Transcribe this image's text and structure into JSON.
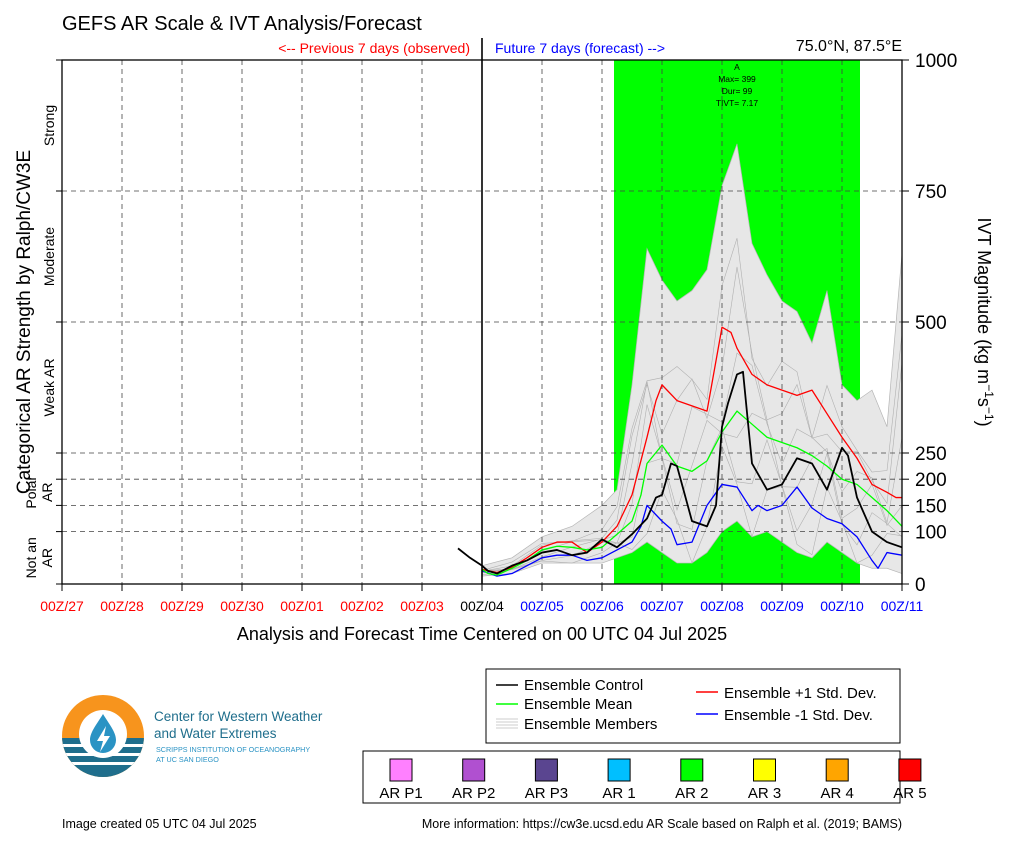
{
  "header": {
    "title": "GEFS AR Scale & IVT Analysis/Forecast",
    "previous_label": "<-- Previous 7 days (observed)",
    "future_label": "Future 7 days (forecast) -->",
    "location": "75.0°N, 87.5°E"
  },
  "axes": {
    "left_label": "Categorical AR Strength by Ralph/CW3E",
    "right_label_main": "IVT Magnitude (kg m",
    "right_label_sup1": "−1",
    "right_label_mid": "s",
    "right_label_sup2": "−1",
    "right_label_end": ")",
    "x_title": "Analysis and Forecast Time Centered on 00 UTC 04 Jul 2025",
    "categories": [
      {
        "label": "Strong",
        "lo": 750,
        "hi": 1000
      },
      {
        "label": "Moderate",
        "lo": 500,
        "hi": 750
      },
      {
        "label": "Weak AR",
        "lo": 250,
        "hi": 500
      },
      {
        "label": "Polar AR",
        "lo": 100,
        "hi": 250
      },
      {
        "label": "Not an AR",
        "lo": 0,
        "hi": 100
      }
    ]
  },
  "ar_event": {
    "letter": "A",
    "max": "Max= 399",
    "dur": "Dur= 99",
    "tivt": "TIVT= 7.17",
    "color": "#00ff00"
  },
  "legend": {
    "control": "Ensemble Control",
    "mean": "Ensemble Mean",
    "members": "Ensemble Members",
    "plus": "Ensemble +1 Std. Dev.",
    "minus": "Ensemble -1 Std. Dev."
  },
  "scale_legend": [
    {
      "label": "AR P1",
      "color": "#ff80ff"
    },
    {
      "label": "AR P2",
      "color": "#b050d0"
    },
    {
      "label": "AR P3",
      "color": "#5a4590"
    },
    {
      "label": "AR 1",
      "color": "#00bfff"
    },
    {
      "label": "AR 2",
      "color": "#00ff00"
    },
    {
      "label": "AR 3",
      "color": "#ffff00"
    },
    {
      "label": "AR 4",
      "color": "#ffa500"
    },
    {
      "label": "AR 5",
      "color": "#ff0000"
    }
  ],
  "logo": {
    "line1": "Center for Western Weather",
    "line2": "and Water Extremes",
    "line3": "SCRIPPS INSTITUTION OF OCEANOGRAPHY",
    "line4": "AT UC SAN DIEGO"
  },
  "footer": {
    "created": "Image created 05 UTC 04 Jul 2025",
    "info": "More information: https://cw3e.ucsd.edu AR Scale based on Ralph et al. (2019; BAMS)"
  },
  "colors": {
    "observed": "#ff0000",
    "forecast": "#0000ff",
    "control": "#000000",
    "mean": "#00ff00",
    "plus": "#ff0000",
    "minus": "#0000ff",
    "members": "#bbbbbb"
  },
  "chart_data": {
    "type": "line",
    "x_unit": "days since 00Z 27 Jun 2025",
    "x_ticks": [
      {
        "x": 0,
        "label": "00Z/27",
        "period": "observed"
      },
      {
        "x": 1,
        "label": "00Z/28",
        "period": "observed"
      },
      {
        "x": 2,
        "label": "00Z/29",
        "period": "observed"
      },
      {
        "x": 3,
        "label": "00Z/30",
        "period": "observed"
      },
      {
        "x": 4,
        "label": "00Z/01",
        "period": "observed"
      },
      {
        "x": 5,
        "label": "00Z/02",
        "period": "observed"
      },
      {
        "x": 6,
        "label": "00Z/03",
        "period": "observed"
      },
      {
        "x": 7,
        "label": "00Z/04",
        "period": "now"
      },
      {
        "x": 8,
        "label": "00Z/05",
        "period": "forecast"
      },
      {
        "x": 9,
        "label": "00Z/06",
        "period": "forecast"
      },
      {
        "x": 10,
        "label": "00Z/07",
        "period": "forecast"
      },
      {
        "x": 11,
        "label": "00Z/08",
        "period": "forecast"
      },
      {
        "x": 12,
        "label": "00Z/09",
        "period": "forecast"
      },
      {
        "x": 13,
        "label": "00Z/10",
        "period": "forecast"
      },
      {
        "x": 14,
        "label": "00Z/11",
        "period": "forecast"
      }
    ],
    "xlim": [
      0,
      14
    ],
    "ylim": [
      0,
      1000
    ],
    "y_ticks": [
      0,
      100,
      150,
      200,
      250,
      500,
      750,
      1000
    ],
    "ar_window": [
      9.2,
      13.3
    ],
    "series": [
      {
        "name": "Ensemble Control",
        "key": "control",
        "x": [
          6.6,
          6.8,
          7.0,
          7.1,
          7.25,
          7.5,
          7.75,
          8.0,
          8.25,
          8.5,
          8.75,
          9.0,
          9.25,
          9.5,
          9.75,
          9.9,
          10.0,
          10.15,
          10.25,
          10.5,
          10.75,
          10.9,
          11.0,
          11.1,
          11.25,
          11.35,
          11.5,
          11.75,
          12.0,
          12.25,
          12.5,
          12.75,
          13.0,
          13.1,
          13.25,
          13.5,
          13.75,
          14.0
        ],
        "y": [
          68,
          50,
          35,
          25,
          20,
          35,
          45,
          60,
          65,
          55,
          60,
          85,
          70,
          95,
          125,
          165,
          170,
          230,
          225,
          120,
          110,
          150,
          300,
          345,
          400,
          405,
          230,
          180,
          190,
          240,
          230,
          180,
          260,
          245,
          165,
          100,
          80,
          70
        ]
      },
      {
        "name": "Ensemble Mean",
        "key": "mean",
        "x": [
          7.0,
          7.1,
          7.25,
          7.5,
          7.75,
          8.0,
          8.25,
          8.5,
          8.75,
          9.0,
          9.25,
          9.5,
          9.65,
          9.75,
          10.0,
          10.25,
          10.5,
          10.75,
          11.0,
          11.25,
          11.5,
          11.75,
          12.0,
          12.25,
          12.5,
          12.75,
          13.0,
          13.25,
          13.5,
          13.75,
          14.0
        ],
        "y": [
          28,
          20,
          17,
          30,
          45,
          65,
          72,
          70,
          65,
          70,
          95,
          120,
          170,
          230,
          265,
          225,
          215,
          235,
          290,
          330,
          305,
          280,
          270,
          260,
          245,
          225,
          200,
          190,
          165,
          140,
          110
        ]
      },
      {
        "name": "Ensemble +1 Std. Dev.",
        "key": "plus",
        "x": [
          7.0,
          7.25,
          7.5,
          7.75,
          8.0,
          8.25,
          8.5,
          8.75,
          9.0,
          9.25,
          9.5,
          9.75,
          9.9,
          10.0,
          10.25,
          10.5,
          10.75,
          11.0,
          11.15,
          11.25,
          11.5,
          11.75,
          12.0,
          12.25,
          12.5,
          12.75,
          13.0,
          13.25,
          13.5,
          13.75,
          13.9,
          14.0
        ],
        "y": [
          28,
          22,
          32,
          50,
          70,
          80,
          80,
          60,
          80,
          110,
          170,
          280,
          350,
          380,
          350,
          340,
          330,
          490,
          480,
          450,
          400,
          380,
          370,
          360,
          370,
          325,
          280,
          240,
          190,
          175,
          165,
          165
        ]
      },
      {
        "name": "Ensemble -1 Std. Dev.",
        "key": "minus",
        "x": [
          7.0,
          7.25,
          7.5,
          7.75,
          8.0,
          8.25,
          8.5,
          8.75,
          9.0,
          9.25,
          9.5,
          9.65,
          9.75,
          10.0,
          10.15,
          10.25,
          10.5,
          10.75,
          11.0,
          11.25,
          11.5,
          11.6,
          11.75,
          12.0,
          12.25,
          12.5,
          12.75,
          13.0,
          13.25,
          13.5,
          13.6,
          13.75,
          14.0
        ],
        "y": [
          25,
          15,
          20,
          35,
          50,
          55,
          55,
          45,
          50,
          65,
          80,
          110,
          150,
          120,
          105,
          75,
          80,
          150,
          190,
          185,
          140,
          150,
          140,
          150,
          185,
          145,
          125,
          115,
          90,
          45,
          30,
          60,
          55
        ]
      },
      {
        "name": "Ensemble Members",
        "key": "members",
        "x": [
          7.0,
          7.5,
          8.0,
          8.5,
          9.0,
          9.25,
          9.5,
          9.75,
          10.0,
          10.25,
          10.5,
          10.75,
          11.0,
          11.25,
          11.5,
          11.75,
          12.0,
          12.25,
          12.5,
          12.75,
          13.0,
          13.25,
          13.5,
          13.75,
          14.0
        ],
        "y_min": [
          15,
          20,
          40,
          40,
          40,
          50,
          60,
          80,
          60,
          40,
          40,
          60,
          100,
          120,
          90,
          100,
          80,
          60,
          50,
          80,
          60,
          40,
          30,
          30,
          20
        ],
        "y_max": [
          35,
          50,
          90,
          110,
          150,
          180,
          380,
          640,
          580,
          540,
          560,
          600,
          760,
          840,
          650,
          590,
          540,
          520,
          460,
          560,
          380,
          350,
          370,
          300,
          630
        ]
      }
    ]
  }
}
